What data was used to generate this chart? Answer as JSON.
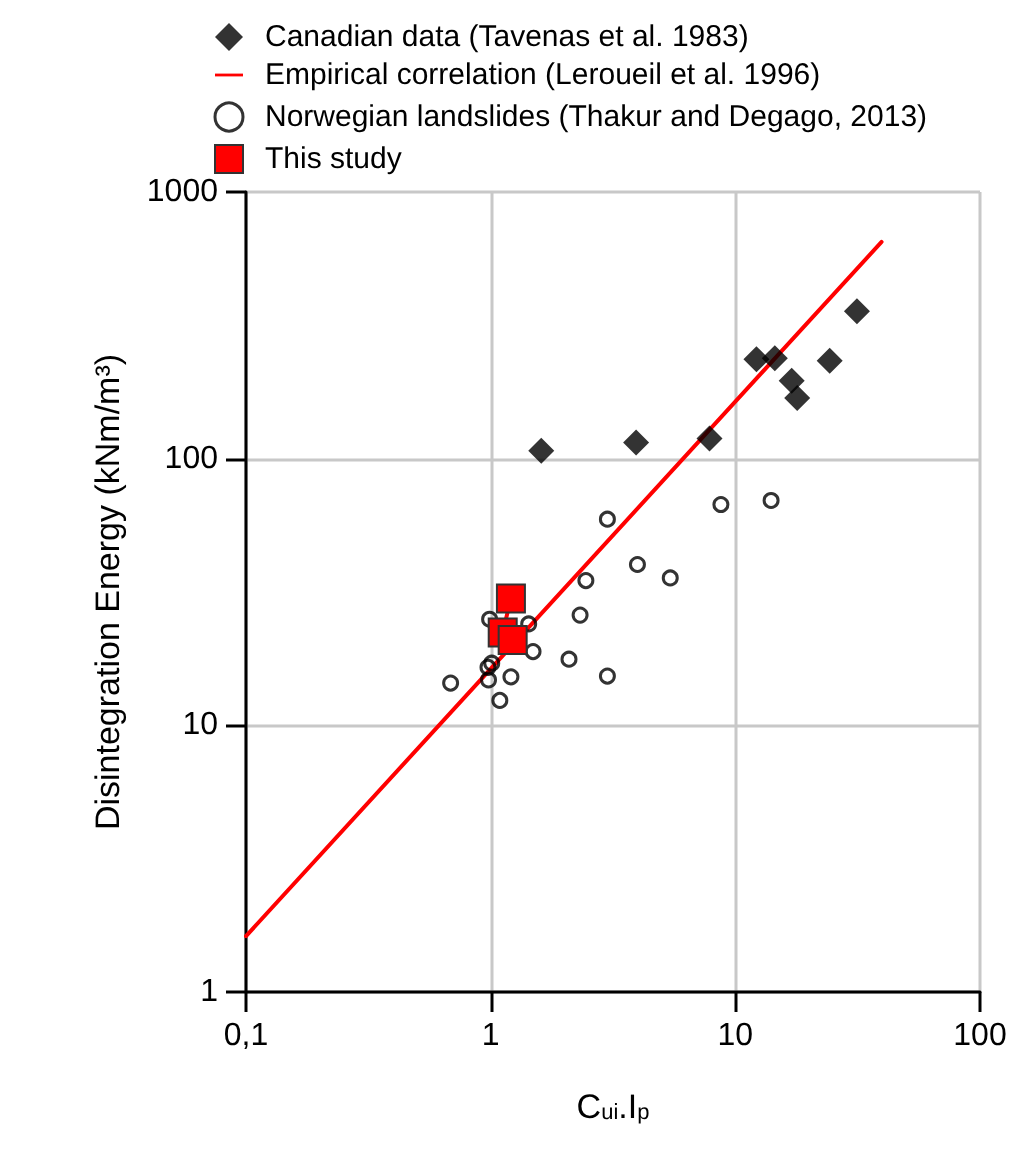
{
  "chart_data": {
    "type": "scatter",
    "xlabel": "C$_{ui}$.I$_{p}$",
    "ylabel": "Disintegration Energy (kNm/m³)",
    "log": "xy",
    "grid": true,
    "legend": "top",
    "xlim": [
      0.1,
      100
    ],
    "xticks": [
      {
        "value": 0.1,
        "label": "0,1"
      },
      1,
      10,
      100
    ],
    "ylim": [
      1,
      1000
    ],
    "yticks": [
      1,
      10,
      100,
      1000
    ],
    "series": [
      {
        "name": "Canadian data (Tavenas et al. 1983)",
        "marker": "diamond",
        "color": "#000000",
        "x": [
          1.61,
          3.93,
          7.84,
          12.2,
          14.5,
          17.0,
          17.9,
          24.3,
          31.4
        ],
        "values": [
          107,
          115,
          119,
          236,
          238,
          196,
          169,
          233,
          357
        ]
      },
      {
        "name": "Empirical correlation (Leroueil et al. 1996)",
        "type": "line",
        "marker": "none",
        "line_style": "solid",
        "color": "#ff0000",
        "x": [
          0.1,
          39.6
        ],
        "values": [
          1.62,
          650
        ]
      },
      {
        "name": "Norwegian landslides (Thakur and Degago, 2013)",
        "marker": "circle",
        "color": "#000000",
        "x": [
          3.0,
          8.73,
          14.0,
          3.98,
          5.42,
          2.45,
          2.32,
          0.99,
          1.43,
          1.49,
          2.09,
          3.0,
          1.21,
          0.975,
          1.01,
          0.98,
          1.09,
          0.686
        ],
        "values": [
          59.3,
          67.3,
          69.7,
          40.1,
          35.7,
          34.9,
          25.9,
          25,
          24,
          18.9,
          17.7,
          15.3,
          15.2,
          16.5,
          17.1,
          14.8,
          12.4,
          14.4
        ]
      },
      {
        "name": "This study",
        "type": "line",
        "marker": "square",
        "line_style": "solid",
        "color": "#ff0000",
        "x": [
          1.21,
          1.12,
          1.23
        ],
        "values": [
          29.9,
          22.3,
          20.9
        ]
      }
    ]
  }
}
